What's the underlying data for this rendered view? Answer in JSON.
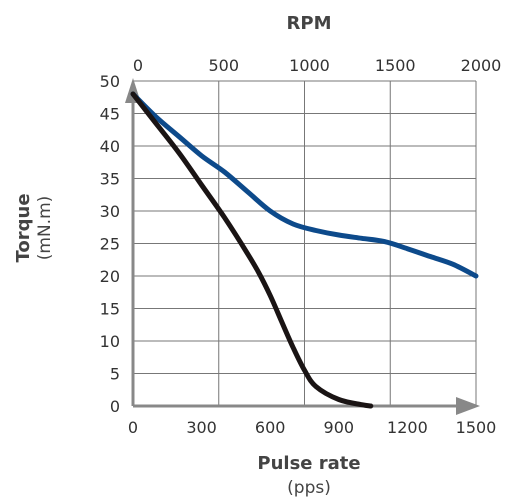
{
  "chart_data": {
    "type": "line",
    "top_axis_title": "RPM",
    "top_ticks": [
      "0",
      "500",
      "1000",
      "1500",
      "2000"
    ],
    "top_range": [
      0,
      2000
    ],
    "xlabel": "Pulse rate",
    "xunit": "(pps)",
    "x_ticks": [
      "0",
      "300",
      "600",
      "900",
      "1200",
      "1500"
    ],
    "xlim": [
      0,
      1500
    ],
    "ylabel": "Torque",
    "yunit": "(mN.m)",
    "y_ticks": [
      "50",
      "45",
      "40",
      "35",
      "30",
      "25",
      "20",
      "15",
      "10",
      "5",
      "0"
    ],
    "ylim": [
      0,
      50
    ],
    "grid": true,
    "series": [
      {
        "color": "#0d4a8b",
        "x": [
          0,
          100,
          200,
          300,
          400,
          500,
          600,
          700,
          800,
          900,
          1000,
          1100,
          1200,
          1300,
          1400,
          1500
        ],
        "y": [
          48,
          44.5,
          41.5,
          38.5,
          36,
          33,
          30,
          28,
          27,
          26.3,
          25.8,
          25.3,
          24.2,
          23,
          21.8,
          20
        ]
      },
      {
        "color": "#1a1414",
        "x": [
          0,
          100,
          200,
          300,
          400,
          500,
          550,
          600,
          650,
          700,
          750,
          800,
          900,
          1000,
          1040
        ],
        "y": [
          48,
          43.5,
          39,
          34,
          29,
          23.5,
          20.5,
          17,
          13,
          9,
          5.5,
          3,
          1,
          0.2,
          0
        ]
      }
    ]
  }
}
